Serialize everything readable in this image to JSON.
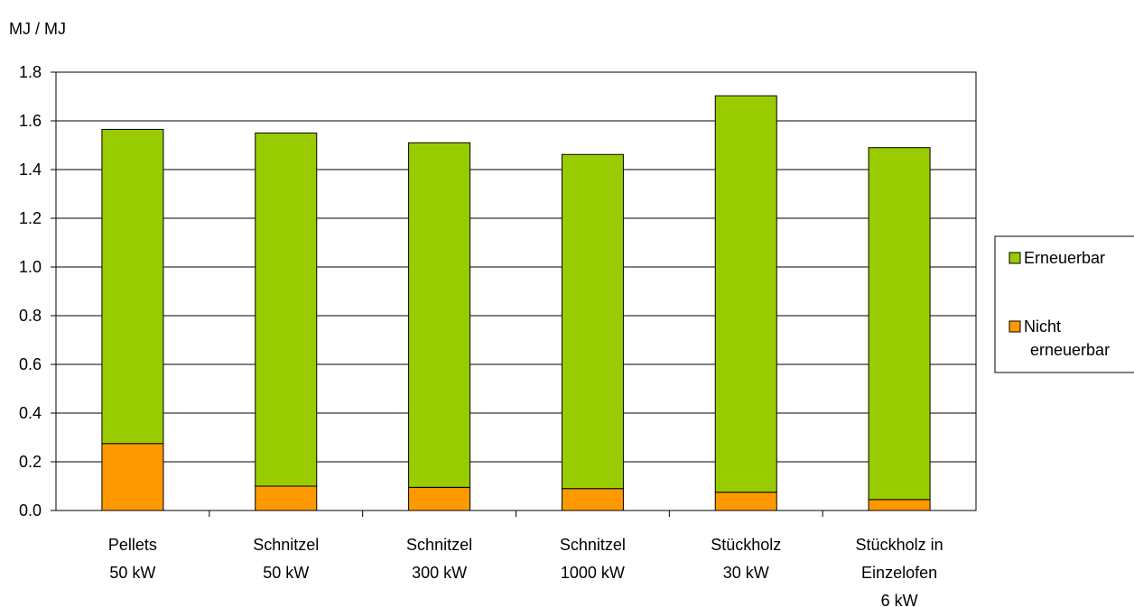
{
  "chart_data": {
    "type": "bar",
    "stacked": true,
    "title": "",
    "ylabel": "MJ / MJ",
    "xlabel": "",
    "ylim": [
      0,
      1.8
    ],
    "yticks": [
      "0.0",
      "0.2",
      "0.4",
      "0.6",
      "0.8",
      "1.0",
      "1.2",
      "1.4",
      "1.6",
      "1.8"
    ],
    "grid": true,
    "legend_position": "right",
    "categories": [
      [
        "Pellets",
        "50 kW"
      ],
      [
        "Schnitzel",
        "50 kW"
      ],
      [
        "Schnitzel",
        "300 kW"
      ],
      [
        "Schnitzel",
        "1000 kW"
      ],
      [
        "Stückholz",
        "30 kW"
      ],
      [
        "Stückholz in",
        "Einzelofen",
        "6 kW"
      ]
    ],
    "series": [
      {
        "name": "Nicht erneuerbar",
        "legend_lines": [
          "Nicht",
          "erneuerbar"
        ],
        "color": "#ff9900",
        "values": [
          0.275,
          0.1,
          0.095,
          0.09,
          0.075,
          0.045
        ]
      },
      {
        "name": "Erneuerbar",
        "legend_lines": [
          "Erneuerbar"
        ],
        "color": "#99cc00",
        "values": [
          1.29,
          1.45,
          1.415,
          1.372,
          1.628,
          1.445
        ]
      }
    ]
  }
}
